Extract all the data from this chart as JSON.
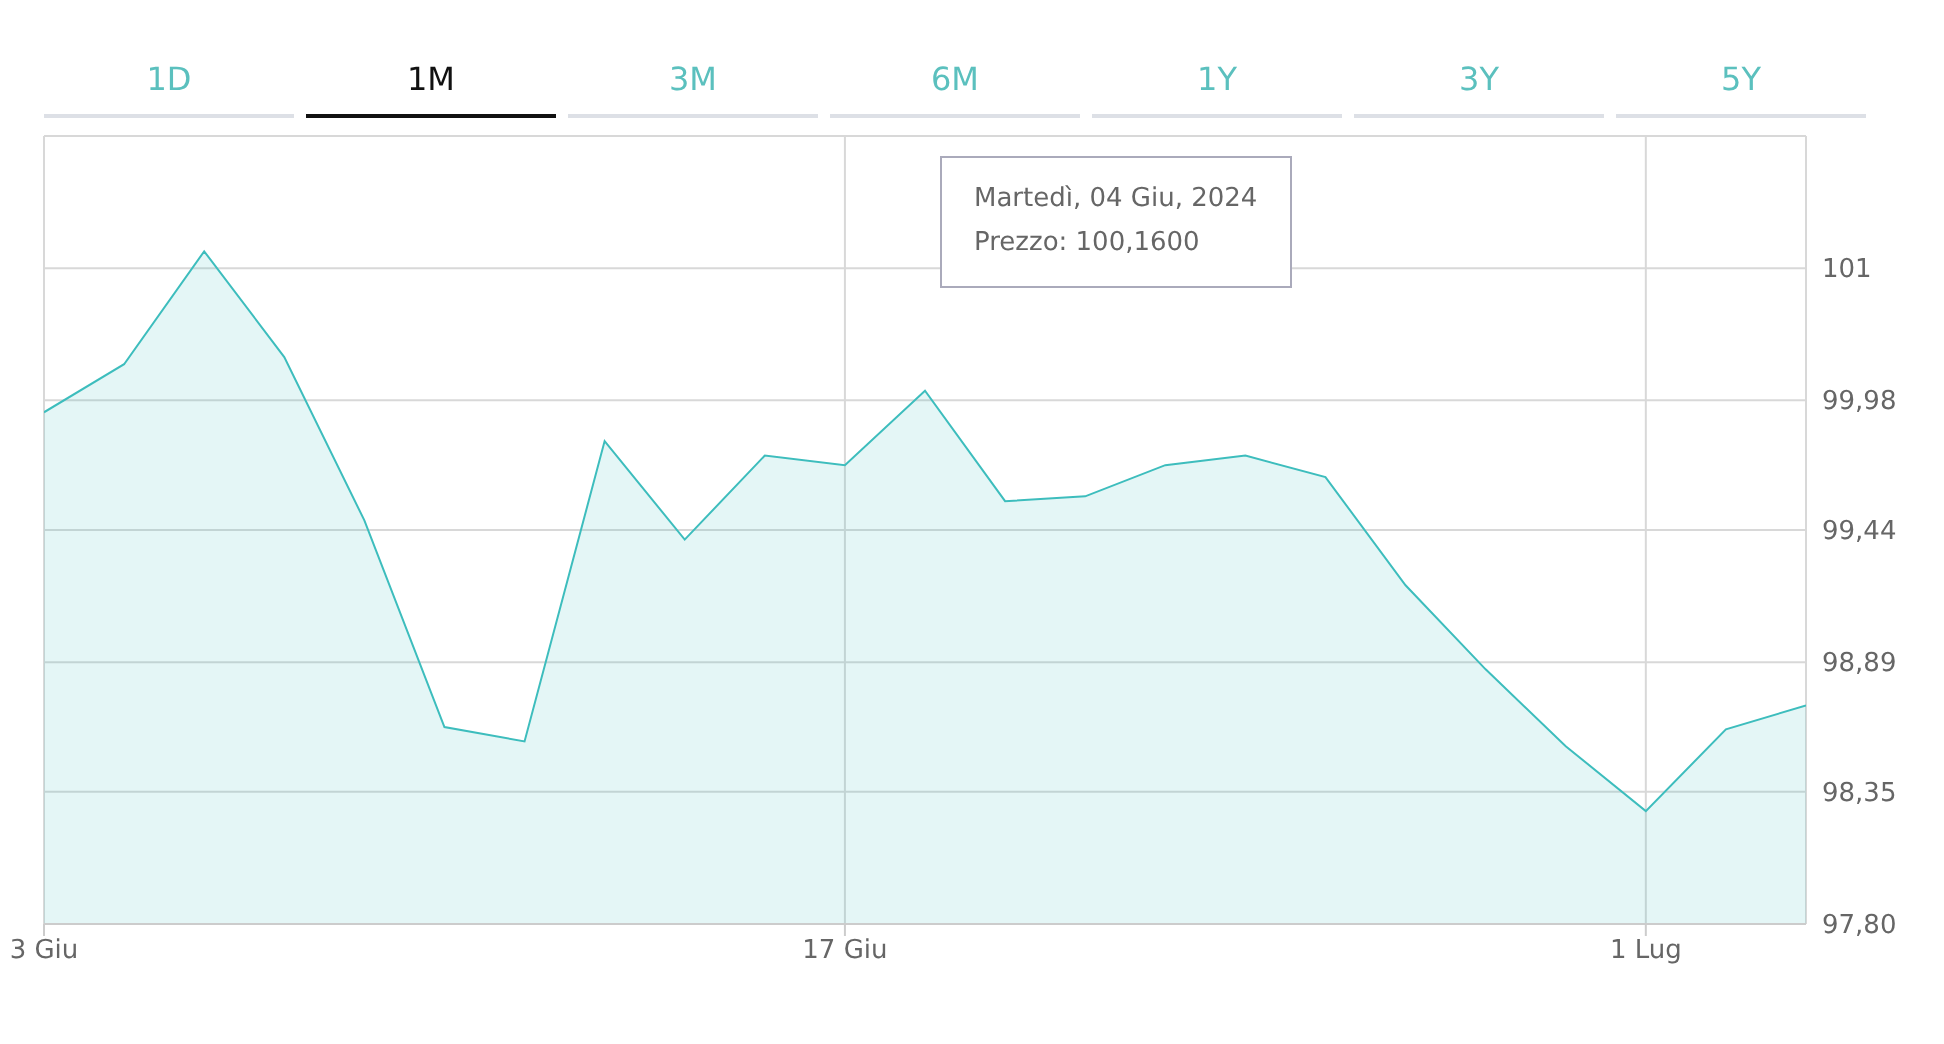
{
  "chart_data": {
    "type": "area",
    "categories": [
      "3 Giu",
      null,
      null,
      null,
      null,
      null,
      null,
      null,
      null,
      null,
      "17 Giu",
      null,
      null,
      null,
      null,
      null,
      null,
      null,
      null,
      null,
      "1 Lug",
      null,
      null
    ],
    "series": [
      {
        "color": "#3dbdbd",
        "values": [
          99.93,
          100.13,
          100.6,
          100.16,
          99.48,
          98.62,
          98.56,
          99.81,
          99.4,
          99.75,
          99.71,
          100.02,
          99.56,
          99.58,
          99.71,
          99.75,
          99.66,
          99.21,
          98.86,
          98.54,
          98.27,
          98.61,
          98.71
        ]
      }
    ],
    "ylim": [
      97.8,
      101.08
    ],
    "yticks": [
      {
        "value": 97.8,
        "label": "97,80"
      },
      {
        "value": 98.35,
        "label": "98,35"
      },
      {
        "value": 98.89,
        "label": "98,89"
      },
      {
        "value": 99.44,
        "label": "99,44"
      },
      {
        "value": 99.98,
        "label": "99,98"
      },
      {
        "value": 100.53,
        "label": "101"
      }
    ],
    "grid": true,
    "annotations": [
      "1D",
      "1M",
      "3M",
      "6M",
      "1Y",
      "3Y",
      "5Y",
      "Martedì, 04 Giu, 2024",
      "Prezzo: 100,1600"
    ]
  }
}
